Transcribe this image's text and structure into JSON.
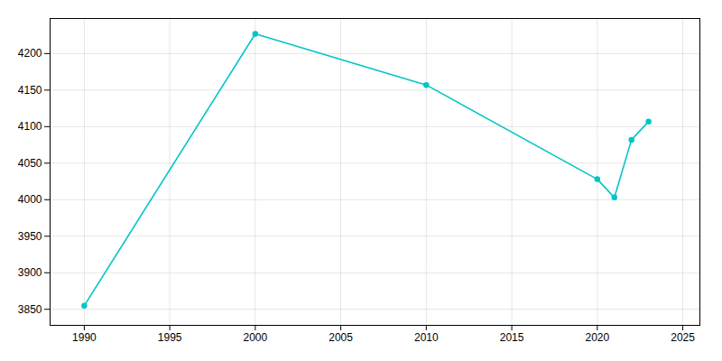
{
  "chart_data": {
    "type": "line",
    "x": [
      1990,
      2000,
      2010,
      2020,
      2021,
      2022,
      2023
    ],
    "values": [
      3855,
      4227,
      4157,
      4028,
      4003,
      4082,
      4107
    ],
    "color": "#00C5C8",
    "marker": "circle",
    "xlim": [
      1988,
      2026
    ],
    "ylim": [
      3828,
      4248
    ],
    "xticks": [
      1990,
      1995,
      2000,
      2005,
      2010,
      2015,
      2020,
      2025
    ],
    "yticks": [
      3850,
      3900,
      3950,
      4000,
      4050,
      4100,
      4150,
      4200
    ],
    "grid": true
  }
}
